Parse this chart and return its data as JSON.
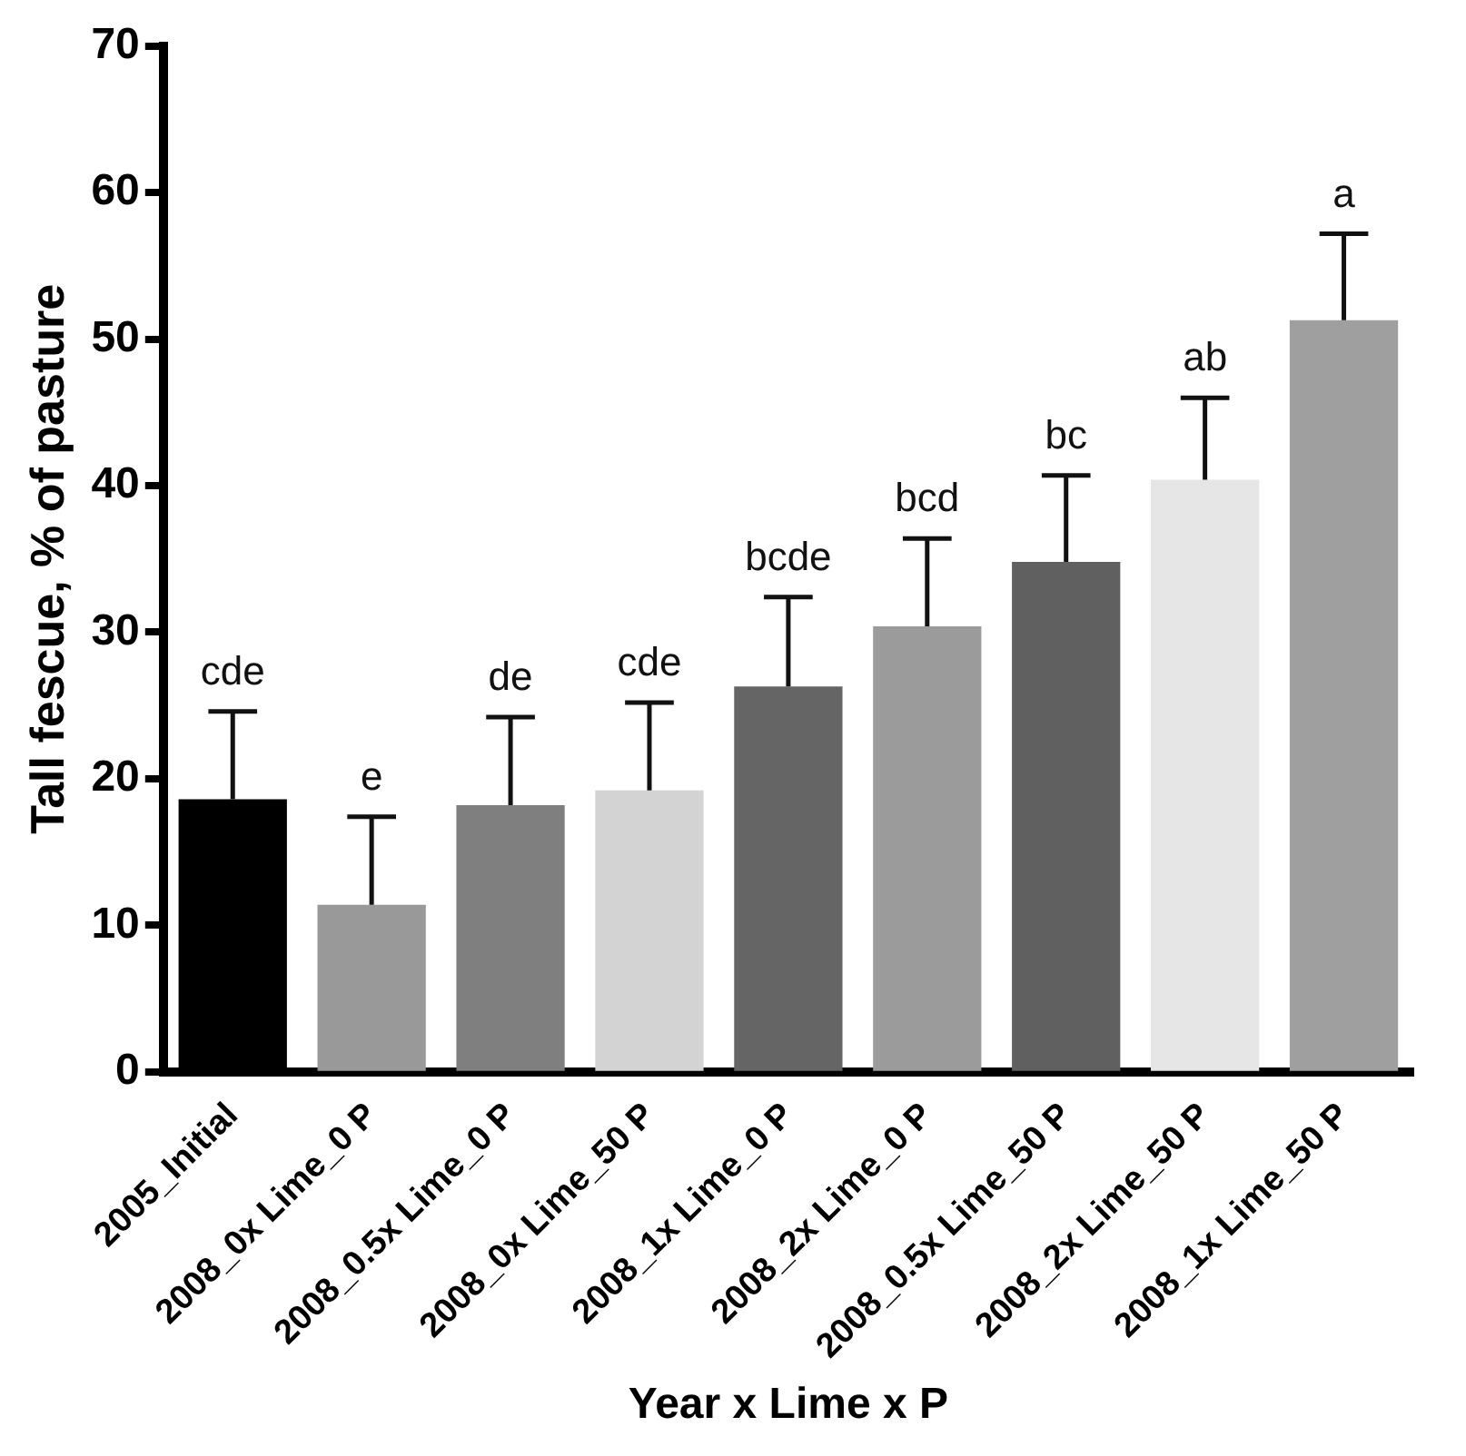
{
  "chart_data": {
    "type": "bar",
    "xlabel": "Year x Lime x P",
    "ylabel": "Tall fescue, % of pasture",
    "categories": [
      "2005_Initial",
      "2008_0x Lime_0 P",
      "2008_0.5x Lime_0 P",
      "2008_0x Lime_50 P",
      "2008_1x Lime_0 P",
      "2008_2x Lime_0 P",
      "2008_0.5x Lime_50 P",
      "2008_2x Lime_50 P",
      "2008_1x Lime_50 P"
    ],
    "values": [
      18.6,
      11.4,
      18.2,
      19.2,
      26.3,
      30.4,
      34.8,
      40.4,
      51.3
    ],
    "errors": [
      [
        18.6,
        24.6
      ],
      [
        11.4,
        17.4
      ],
      [
        18.2,
        24.2
      ],
      [
        19.2,
        25.2
      ],
      [
        26.3,
        32.4
      ],
      [
        30.4,
        36.4
      ],
      [
        34.8,
        40.7
      ],
      [
        40.4,
        46.0
      ],
      [
        51.3,
        57.2
      ]
    ],
    "colors": [
      "#000000",
      "#999999",
      "#7f7f7f",
      "#d3d3d3",
      "#656565",
      "#9b9b9b",
      "#606060",
      "#e6e6e6",
      "#9f9f9f"
    ],
    "ylim": [
      0,
      70
    ],
    "yticks": [
      0,
      10,
      20,
      30,
      40,
      50,
      60,
      70
    ],
    "grid": false,
    "legend": false,
    "annotations": [
      {
        "text": "cde",
        "x": "2005_Initial",
        "y": 24.6
      },
      {
        "text": "e",
        "x": "2008_0x Lime_0 P",
        "y": 17.4
      },
      {
        "text": "de",
        "x": "2008_0.5x Lime_0 P",
        "y": 24.2
      },
      {
        "text": "cde",
        "x": "2008_0x Lime_50 P",
        "y": 25.2
      },
      {
        "text": "bcde",
        "x": "2008_1x Lime_0 P",
        "y": 32.4
      },
      {
        "text": "bcd",
        "x": "2008_2x Lime_0 P",
        "y": 36.4
      },
      {
        "text": "bc",
        "x": "2008_0.5x Lime_50 P",
        "y": 40.7
      },
      {
        "text": "ab",
        "x": "2008_2x Lime_50 P",
        "y": 46.0
      },
      {
        "text": "a",
        "x": "2008_1x Lime_50 P",
        "y": 57.2
      }
    ]
  }
}
